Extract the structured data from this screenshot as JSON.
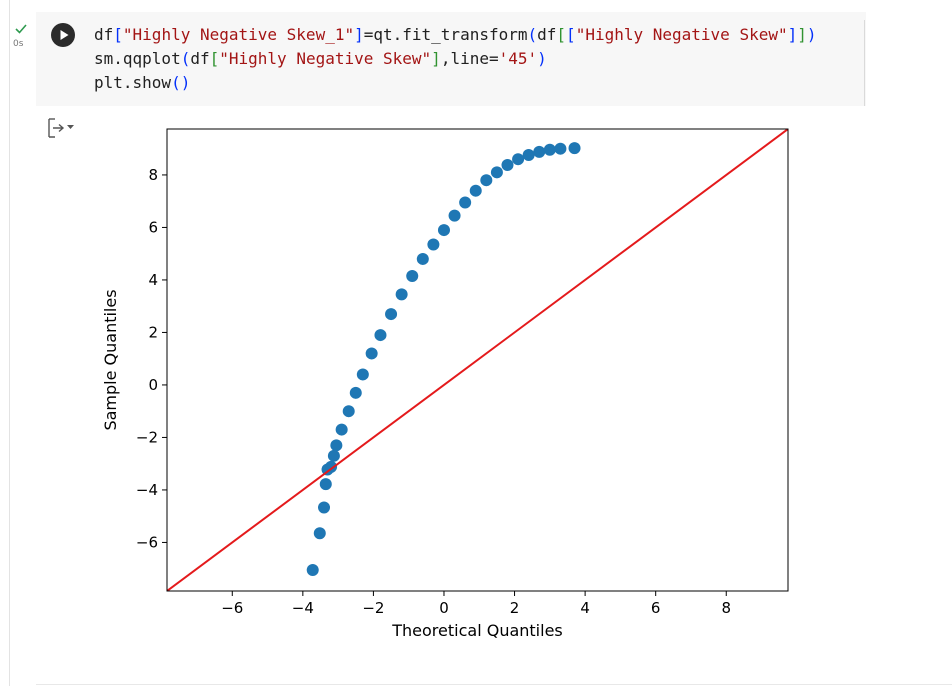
{
  "cell": {
    "exec_time": "0s",
    "code_lines": [
      [
        {
          "t": "df"
        },
        {
          "t": "[",
          "c": "p"
        },
        {
          "t": "\"Highly Negative Skew_1\"",
          "c": "s"
        },
        {
          "t": "]",
          "c": "p"
        },
        {
          "t": "=qt.fit_transform"
        },
        {
          "t": "(",
          "c": "p"
        },
        {
          "t": "df"
        },
        {
          "t": "[",
          "c": "p2"
        },
        {
          "t": "[",
          "c": "p"
        },
        {
          "t": "\"Highly Negative Skew\"",
          "c": "s"
        },
        {
          "t": "]",
          "c": "p"
        },
        {
          "t": "]",
          "c": "p2"
        },
        {
          "t": ")",
          "c": "p"
        }
      ],
      [
        {
          "t": "sm.qqplot"
        },
        {
          "t": "(",
          "c": "p"
        },
        {
          "t": "df"
        },
        {
          "t": "[",
          "c": "p2"
        },
        {
          "t": "\"Highly Negative Skew\"",
          "c": "s"
        },
        {
          "t": "]",
          "c": "p2"
        },
        {
          "t": ",line="
        },
        {
          "t": "'45'",
          "c": "s"
        },
        {
          "t": ")",
          "c": "p"
        }
      ],
      [
        {
          "t": "plt.show"
        },
        {
          "t": "()",
          "c": "p"
        }
      ]
    ]
  },
  "colors": {
    "points": "#1f77b4",
    "reference_line": "#e41a1c",
    "code_string": "#a31515"
  },
  "chart_data": {
    "type": "scatter",
    "title": "",
    "xlabel": "Theoretical Quantiles",
    "ylabel": "Sample Quantiles",
    "xlim": [
      -7.85,
      9.75
    ],
    "ylim": [
      -7.85,
      9.75
    ],
    "xticks": [
      -6,
      -4,
      -2,
      0,
      2,
      4,
      6,
      8
    ],
    "yticks": [
      -6,
      -4,
      -2,
      0,
      2,
      4,
      6,
      8
    ],
    "tick_labels": [
      "−6",
      "−4",
      "−2",
      "0",
      "2",
      "4",
      "6",
      "8"
    ],
    "grid": false,
    "reference_line": {
      "label": "45",
      "slope": 1,
      "intercept": 0
    },
    "series": [
      {
        "points": [
          [
            -3.72,
            -7.05
          ],
          [
            -3.52,
            -5.65
          ],
          [
            -3.4,
            -4.67
          ],
          [
            -3.35,
            -3.78
          ],
          [
            -3.3,
            -3.22
          ],
          [
            -3.2,
            -3.12
          ],
          [
            -3.12,
            -2.7
          ],
          [
            -3.05,
            -2.3
          ],
          [
            -2.9,
            -1.7
          ],
          [
            -2.7,
            -1.0
          ],
          [
            -2.5,
            -0.3
          ],
          [
            -2.3,
            0.4
          ],
          [
            -2.05,
            1.2
          ],
          [
            -1.8,
            1.9
          ],
          [
            -1.5,
            2.7
          ],
          [
            -1.2,
            3.45
          ],
          [
            -0.9,
            4.15
          ],
          [
            -0.6,
            4.8
          ],
          [
            -0.3,
            5.35
          ],
          [
            0.0,
            5.9
          ],
          [
            0.3,
            6.45
          ],
          [
            0.6,
            6.95
          ],
          [
            0.9,
            7.4
          ],
          [
            1.2,
            7.8
          ],
          [
            1.5,
            8.1
          ],
          [
            1.8,
            8.38
          ],
          [
            2.1,
            8.6
          ],
          [
            2.4,
            8.76
          ],
          [
            2.7,
            8.88
          ],
          [
            3.0,
            8.96
          ],
          [
            3.3,
            9.0
          ],
          [
            3.7,
            9.02
          ]
        ]
      }
    ]
  }
}
